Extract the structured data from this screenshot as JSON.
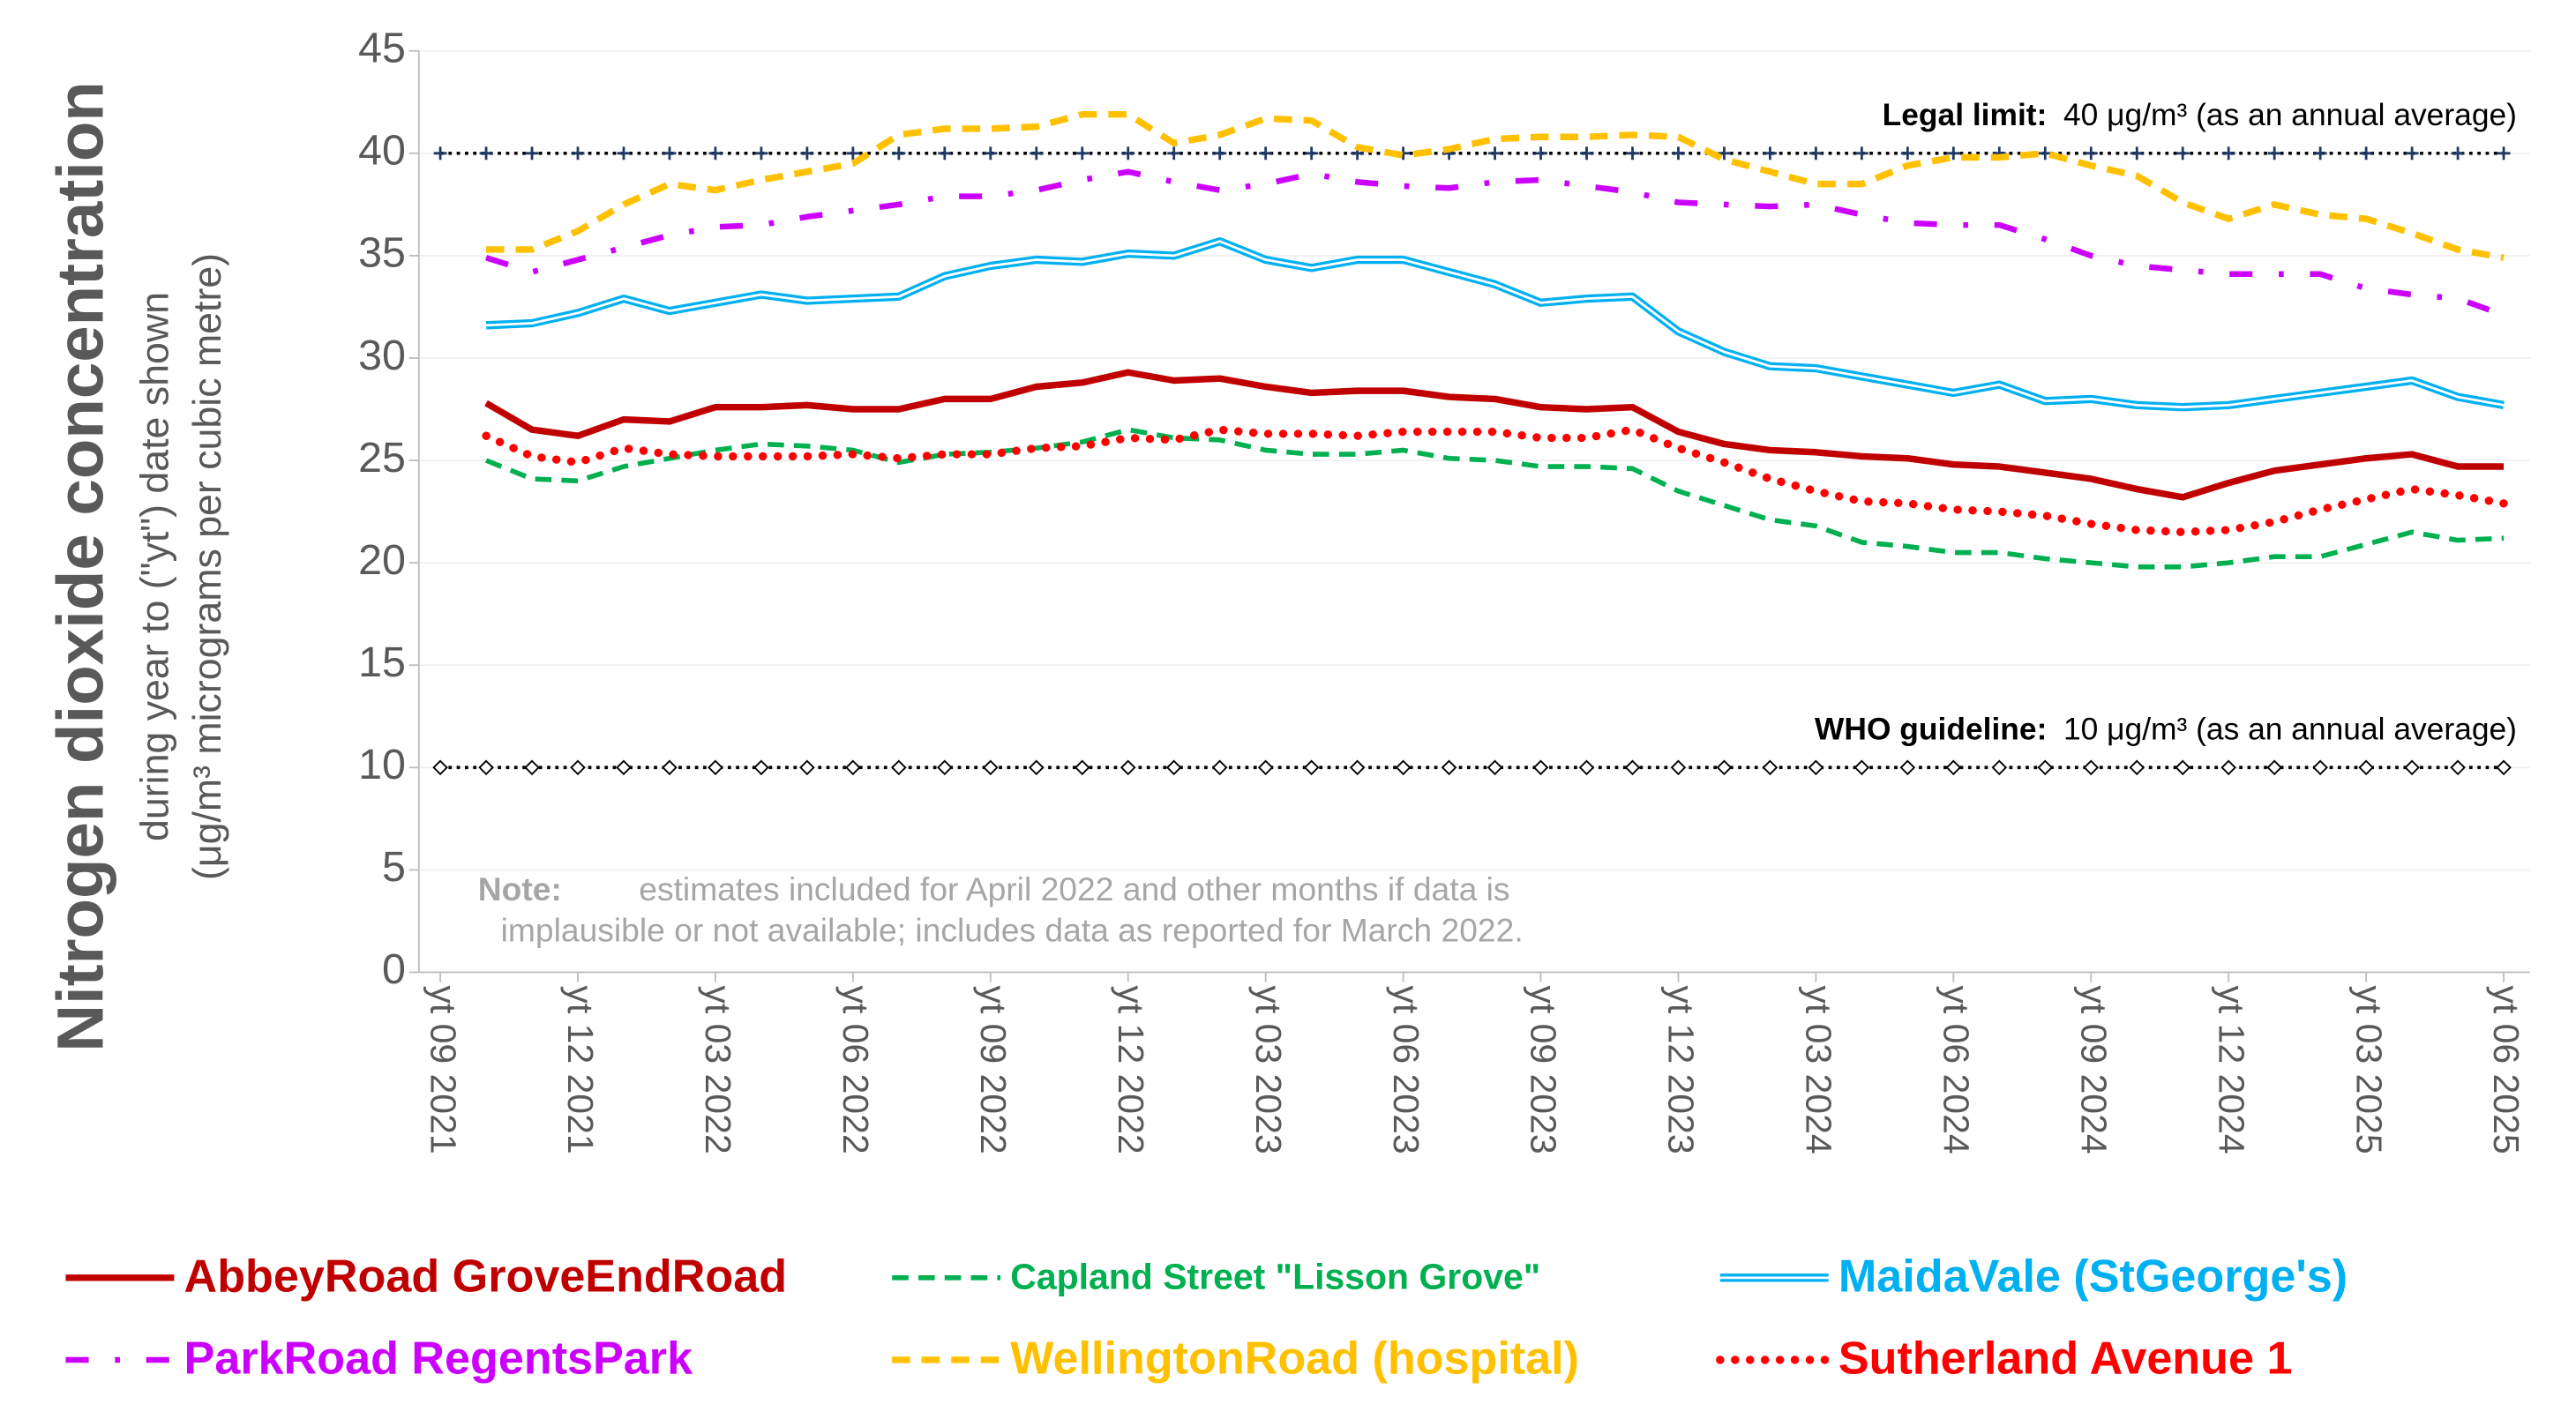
{
  "chart_data": {
    "type": "line",
    "y_title": "Nitrogen dioxide concentration",
    "y_subtitle": [
      "during year to (\"yt\") date shown",
      "(μg/m³ micrograms per cubic metre)"
    ],
    "categories": [
      "yt 09 2021",
      null,
      null,
      "yt 12 2021",
      null,
      null,
      "yt 03 2022",
      null,
      null,
      "yt 06 2022",
      null,
      null,
      "yt 09 2022",
      null,
      null,
      "yt 12 2022",
      null,
      null,
      "yt 03 2023",
      null,
      null,
      "yt 06 2023",
      null,
      null,
      "yt 09 2023",
      null,
      null,
      "yt 12 2023",
      null,
      null,
      "yt 03 2024",
      null,
      null,
      "yt 06 2024",
      null,
      null,
      "yt 09 2024",
      null,
      null,
      "yt 12 2024",
      null,
      null,
      "yt 03 2025",
      null,
      null,
      "yt 06 2025"
    ],
    "ylim": [
      0,
      45
    ],
    "yticks": [
      0,
      5,
      10,
      15,
      20,
      25,
      30,
      35,
      40,
      45
    ],
    "grid": true,
    "series": [
      {
        "name": "AbbeyRoad GroveEndRoad",
        "color": "#c00000",
        "style": "solid",
        "values": [
          null,
          27.8,
          26.5,
          26.2,
          27.0,
          26.9,
          27.6,
          27.6,
          27.7,
          27.5,
          27.5,
          28.0,
          28.0,
          28.6,
          28.8,
          29.3,
          28.9,
          29.0,
          28.6,
          28.3,
          28.4,
          28.4,
          28.1,
          28.0,
          27.6,
          27.5,
          27.6,
          26.4,
          25.8,
          25.5,
          25.4,
          25.2,
          25.1,
          24.8,
          24.7,
          24.4,
          24.1,
          23.6,
          23.2,
          23.9,
          24.5,
          24.8,
          25.1,
          25.3,
          24.7,
          24.7
        ]
      },
      {
        "name": "Capland Street \"Lisson Grove\"",
        "color": "#00b050",
        "style": "dashed",
        "values": [
          null,
          25.0,
          24.1,
          24.0,
          24.7,
          25.1,
          25.5,
          25.8,
          25.7,
          25.5,
          24.9,
          25.3,
          25.4,
          25.6,
          25.9,
          26.5,
          26.1,
          26.0,
          25.5,
          25.3,
          25.3,
          25.5,
          25.1,
          25.0,
          24.7,
          24.7,
          24.6,
          23.5,
          22.8,
          22.1,
          21.8,
          21.0,
          20.8,
          20.5,
          20.5,
          20.2,
          20.0,
          19.8,
          19.8,
          20.0,
          20.3,
          20.3,
          20.9,
          21.5,
          21.1,
          21.2
        ]
      },
      {
        "name": "MaidaVale (StGeorge's)",
        "color": "#00b0f0",
        "style": "double",
        "values": [
          null,
          31.6,
          31.7,
          32.2,
          32.9,
          32.3,
          32.7,
          33.1,
          32.8,
          32.9,
          33.0,
          34.0,
          34.5,
          34.8,
          34.7,
          35.1,
          35.0,
          35.7,
          34.8,
          34.4,
          34.8,
          34.8,
          34.2,
          33.6,
          32.7,
          32.9,
          33.0,
          31.3,
          30.3,
          29.6,
          29.5,
          29.1,
          28.7,
          28.3,
          28.7,
          27.9,
          28.0,
          27.7,
          27.6,
          27.7,
          28.0,
          28.3,
          28.6,
          28.9,
          28.1,
          27.7
        ]
      },
      {
        "name": "ParkRoad RegentsPark",
        "color": "#cc00ff",
        "style": "dashdot",
        "values": [
          null,
          34.9,
          34.2,
          34.8,
          35.4,
          36.0,
          36.4,
          36.5,
          36.9,
          37.2,
          37.5,
          37.9,
          37.9,
          38.2,
          38.7,
          39.1,
          38.6,
          38.2,
          38.5,
          39.0,
          38.6,
          38.4,
          38.3,
          38.6,
          38.7,
          38.4,
          38.1,
          37.6,
          37.5,
          37.4,
          37.5,
          37.0,
          36.6,
          36.5,
          36.5,
          35.8,
          35.0,
          34.5,
          34.3,
          34.1,
          34.1,
          34.1,
          33.4,
          33.1,
          32.9,
          32.1
        ]
      },
      {
        "name": "WellingtonRoad (hospital)",
        "color": "#ffc000",
        "style": "dash",
        "values": [
          null,
          35.3,
          35.3,
          36.2,
          37.5,
          38.5,
          38.2,
          38.7,
          39.1,
          39.5,
          40.9,
          41.2,
          41.2,
          41.3,
          41.9,
          41.9,
          40.5,
          40.9,
          41.7,
          41.6,
          40.3,
          39.9,
          40.2,
          40.7,
          40.8,
          40.8,
          40.9,
          40.8,
          39.7,
          39.1,
          38.5,
          38.5,
          39.4,
          39.8,
          39.8,
          40.0,
          39.4,
          38.9,
          37.6,
          36.8,
          37.5,
          37.0,
          36.8,
          36.1,
          35.3,
          34.9
        ]
      },
      {
        "name": "Sutherland Avenue 1",
        "color": "#ff0000",
        "style": "dotted",
        "values": [
          null,
          26.2,
          25.2,
          24.9,
          25.6,
          25.3,
          25.2,
          25.2,
          25.2,
          25.3,
          25.1,
          25.3,
          25.3,
          25.6,
          25.7,
          26.1,
          26.0,
          26.5,
          26.3,
          26.3,
          26.2,
          26.4,
          26.4,
          26.4,
          26.1,
          26.1,
          26.5,
          25.6,
          24.9,
          24.1,
          23.5,
          23.0,
          22.9,
          22.6,
          22.5,
          22.3,
          21.9,
          21.6,
          21.5,
          21.6,
          22.0,
          22.6,
          23.1,
          23.6,
          23.3,
          22.9
        ]
      }
    ],
    "reference_lines": [
      {
        "value": 40,
        "label": "Legal limit:",
        "text": "40 μg/m³ (as an annual average)",
        "marker": "plus"
      },
      {
        "value": 10,
        "label": "WHO guideline:",
        "text": "10 μg/m³ (as an annual average)",
        "marker": "diamond"
      }
    ],
    "note": {
      "label": "Note:",
      "text": [
        "estimates included for April 2022 and other months if data is",
        "implausible or not available; includes data as reported for March 2022."
      ]
    }
  }
}
